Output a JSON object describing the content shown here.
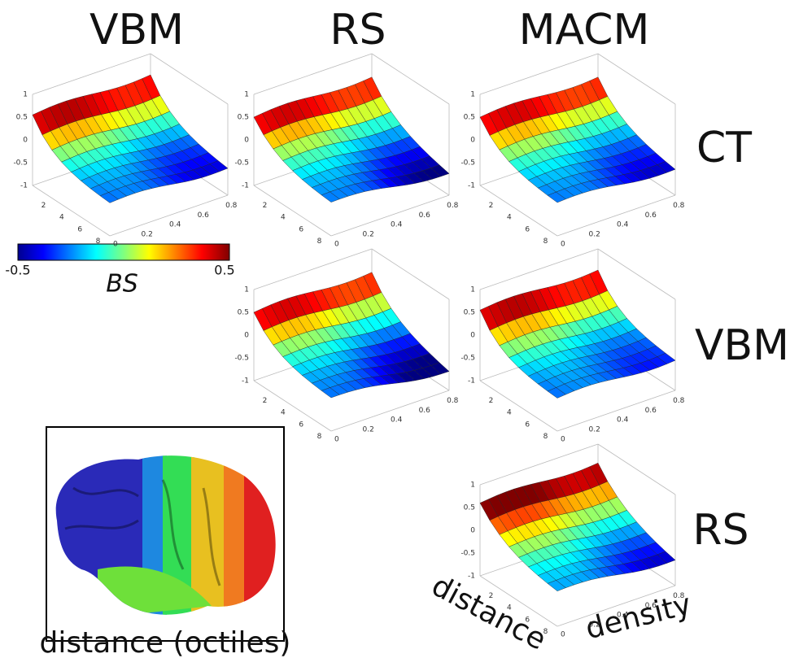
{
  "columns": [
    "VBM",
    "RS",
    "MACM"
  ],
  "rows": [
    "CT",
    "VBM",
    "RS"
  ],
  "axes": {
    "z_ticks": [
      "1",
      "0.5",
      "0",
      "-0.5",
      "-1"
    ],
    "distance_ticks": [
      "2",
      "4",
      "6",
      "8"
    ],
    "density_ticks": [
      "0",
      "0.2",
      "0.4",
      "0.6",
      "0.8"
    ],
    "x_label": "distance",
    "y_label": "density"
  },
  "colorbar": {
    "min": "-0.5",
    "max": "0.5",
    "label": "BS"
  },
  "brain_caption": "distance (octiles)"
}
